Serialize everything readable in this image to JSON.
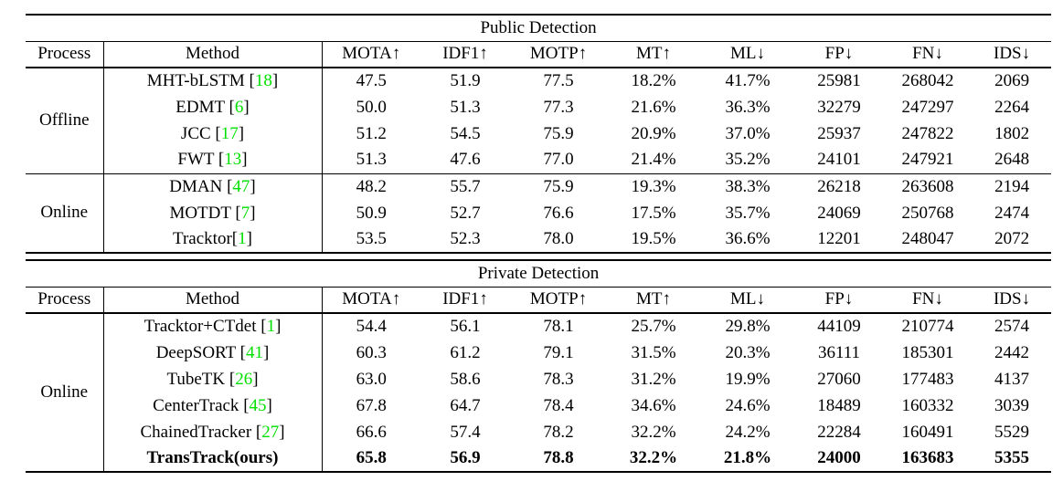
{
  "colors": {
    "citation_green": "#00e000",
    "text": "#000000",
    "rule": "#000000",
    "background": "#ffffff"
  },
  "columns": [
    {
      "key": "process",
      "label": "Process"
    },
    {
      "key": "method",
      "label": "Method"
    },
    {
      "key": "mota",
      "label": "MOTA↑"
    },
    {
      "key": "idf1",
      "label": "IDF1↑"
    },
    {
      "key": "motp",
      "label": "MOTP↑"
    },
    {
      "key": "mt",
      "label": "MT↑"
    },
    {
      "key": "ml",
      "label": "ML↓"
    },
    {
      "key": "fp",
      "label": "FP↓"
    },
    {
      "key": "fn",
      "label": "FN↓"
    },
    {
      "key": "ids",
      "label": "IDS↓"
    }
  ],
  "tables": [
    {
      "title": "Public Detection",
      "groups": [
        {
          "process": "Offline",
          "rows": [
            {
              "method": "MHT-bLSTM",
              "cite": "18",
              "nospace": false,
              "bold": false,
              "values": [
                "47.5",
                "51.9",
                "77.5",
                "18.2%",
                "41.7%",
                "25981",
                "268042",
                "2069"
              ]
            },
            {
              "method": "EDMT",
              "cite": "6",
              "nospace": false,
              "bold": false,
              "values": [
                "50.0",
                "51.3",
                "77.3",
                "21.6%",
                "36.3%",
                "32279",
                "247297",
                "2264"
              ]
            },
            {
              "method": "JCC",
              "cite": "17",
              "nospace": false,
              "bold": false,
              "values": [
                "51.2",
                "54.5",
                "75.9",
                "20.9%",
                "37.0%",
                "25937",
                "247822",
                "1802"
              ]
            },
            {
              "method": "FWT",
              "cite": "13",
              "nospace": false,
              "bold": false,
              "values": [
                "51.3",
                "47.6",
                "77.0",
                "21.4%",
                "35.2%",
                "24101",
                "247921",
                "2648"
              ]
            }
          ]
        },
        {
          "process": "Online",
          "rows": [
            {
              "method": "DMAN",
              "cite": "47",
              "nospace": false,
              "bold": false,
              "values": [
                "48.2",
                "55.7",
                "75.9",
                "19.3%",
                "38.3%",
                "26218",
                "263608",
                "2194"
              ]
            },
            {
              "method": "MOTDT",
              "cite": "7",
              "nospace": false,
              "bold": false,
              "values": [
                "50.9",
                "52.7",
                "76.6",
                "17.5%",
                "35.7%",
                "24069",
                "250768",
                "2474"
              ]
            },
            {
              "method": "Tracktor",
              "cite": "1",
              "nospace": true,
              "bold": false,
              "values": [
                "53.5",
                "52.3",
                "78.0",
                "19.5%",
                "36.6%",
                "12201",
                "248047",
                "2072"
              ]
            }
          ]
        }
      ]
    },
    {
      "title": "Private Detection",
      "groups": [
        {
          "process": "Online",
          "rows": [
            {
              "method": "Tracktor+CTdet",
              "cite": "1",
              "nospace": false,
              "bold": false,
              "values": [
                "54.4",
                "56.1",
                "78.1",
                "25.7%",
                "29.8%",
                "44109",
                "210774",
                "2574"
              ]
            },
            {
              "method": "DeepSORT",
              "cite": "41",
              "nospace": false,
              "bold": false,
              "values": [
                "60.3",
                "61.2",
                "79.1",
                "31.5%",
                "20.3%",
                "36111",
                "185301",
                "2442"
              ]
            },
            {
              "method": "TubeTK",
              "cite": "26",
              "nospace": false,
              "bold": false,
              "values": [
                "63.0",
                "58.6",
                "78.3",
                "31.2%",
                "19.9%",
                "27060",
                "177483",
                "4137"
              ]
            },
            {
              "method": "CenterTrack",
              "cite": "45",
              "nospace": false,
              "bold": false,
              "values": [
                "67.8",
                "64.7",
                "78.4",
                "34.6%",
                "24.6%",
                "18489",
                "160332",
                "3039"
              ]
            },
            {
              "method": "ChainedTracker",
              "cite": "27",
              "nospace": false,
              "bold": false,
              "values": [
                "66.6",
                "57.4",
                "78.2",
                "32.2%",
                "24.2%",
                "22284",
                "160491",
                "5529"
              ]
            },
            {
              "method": "TransTrack(ours)",
              "cite": null,
              "nospace": false,
              "bold": true,
              "values": [
                "65.8",
                "56.9",
                "78.8",
                "32.2%",
                "21.8%",
                "24000",
                "163683",
                "5355"
              ]
            }
          ]
        }
      ]
    }
  ]
}
